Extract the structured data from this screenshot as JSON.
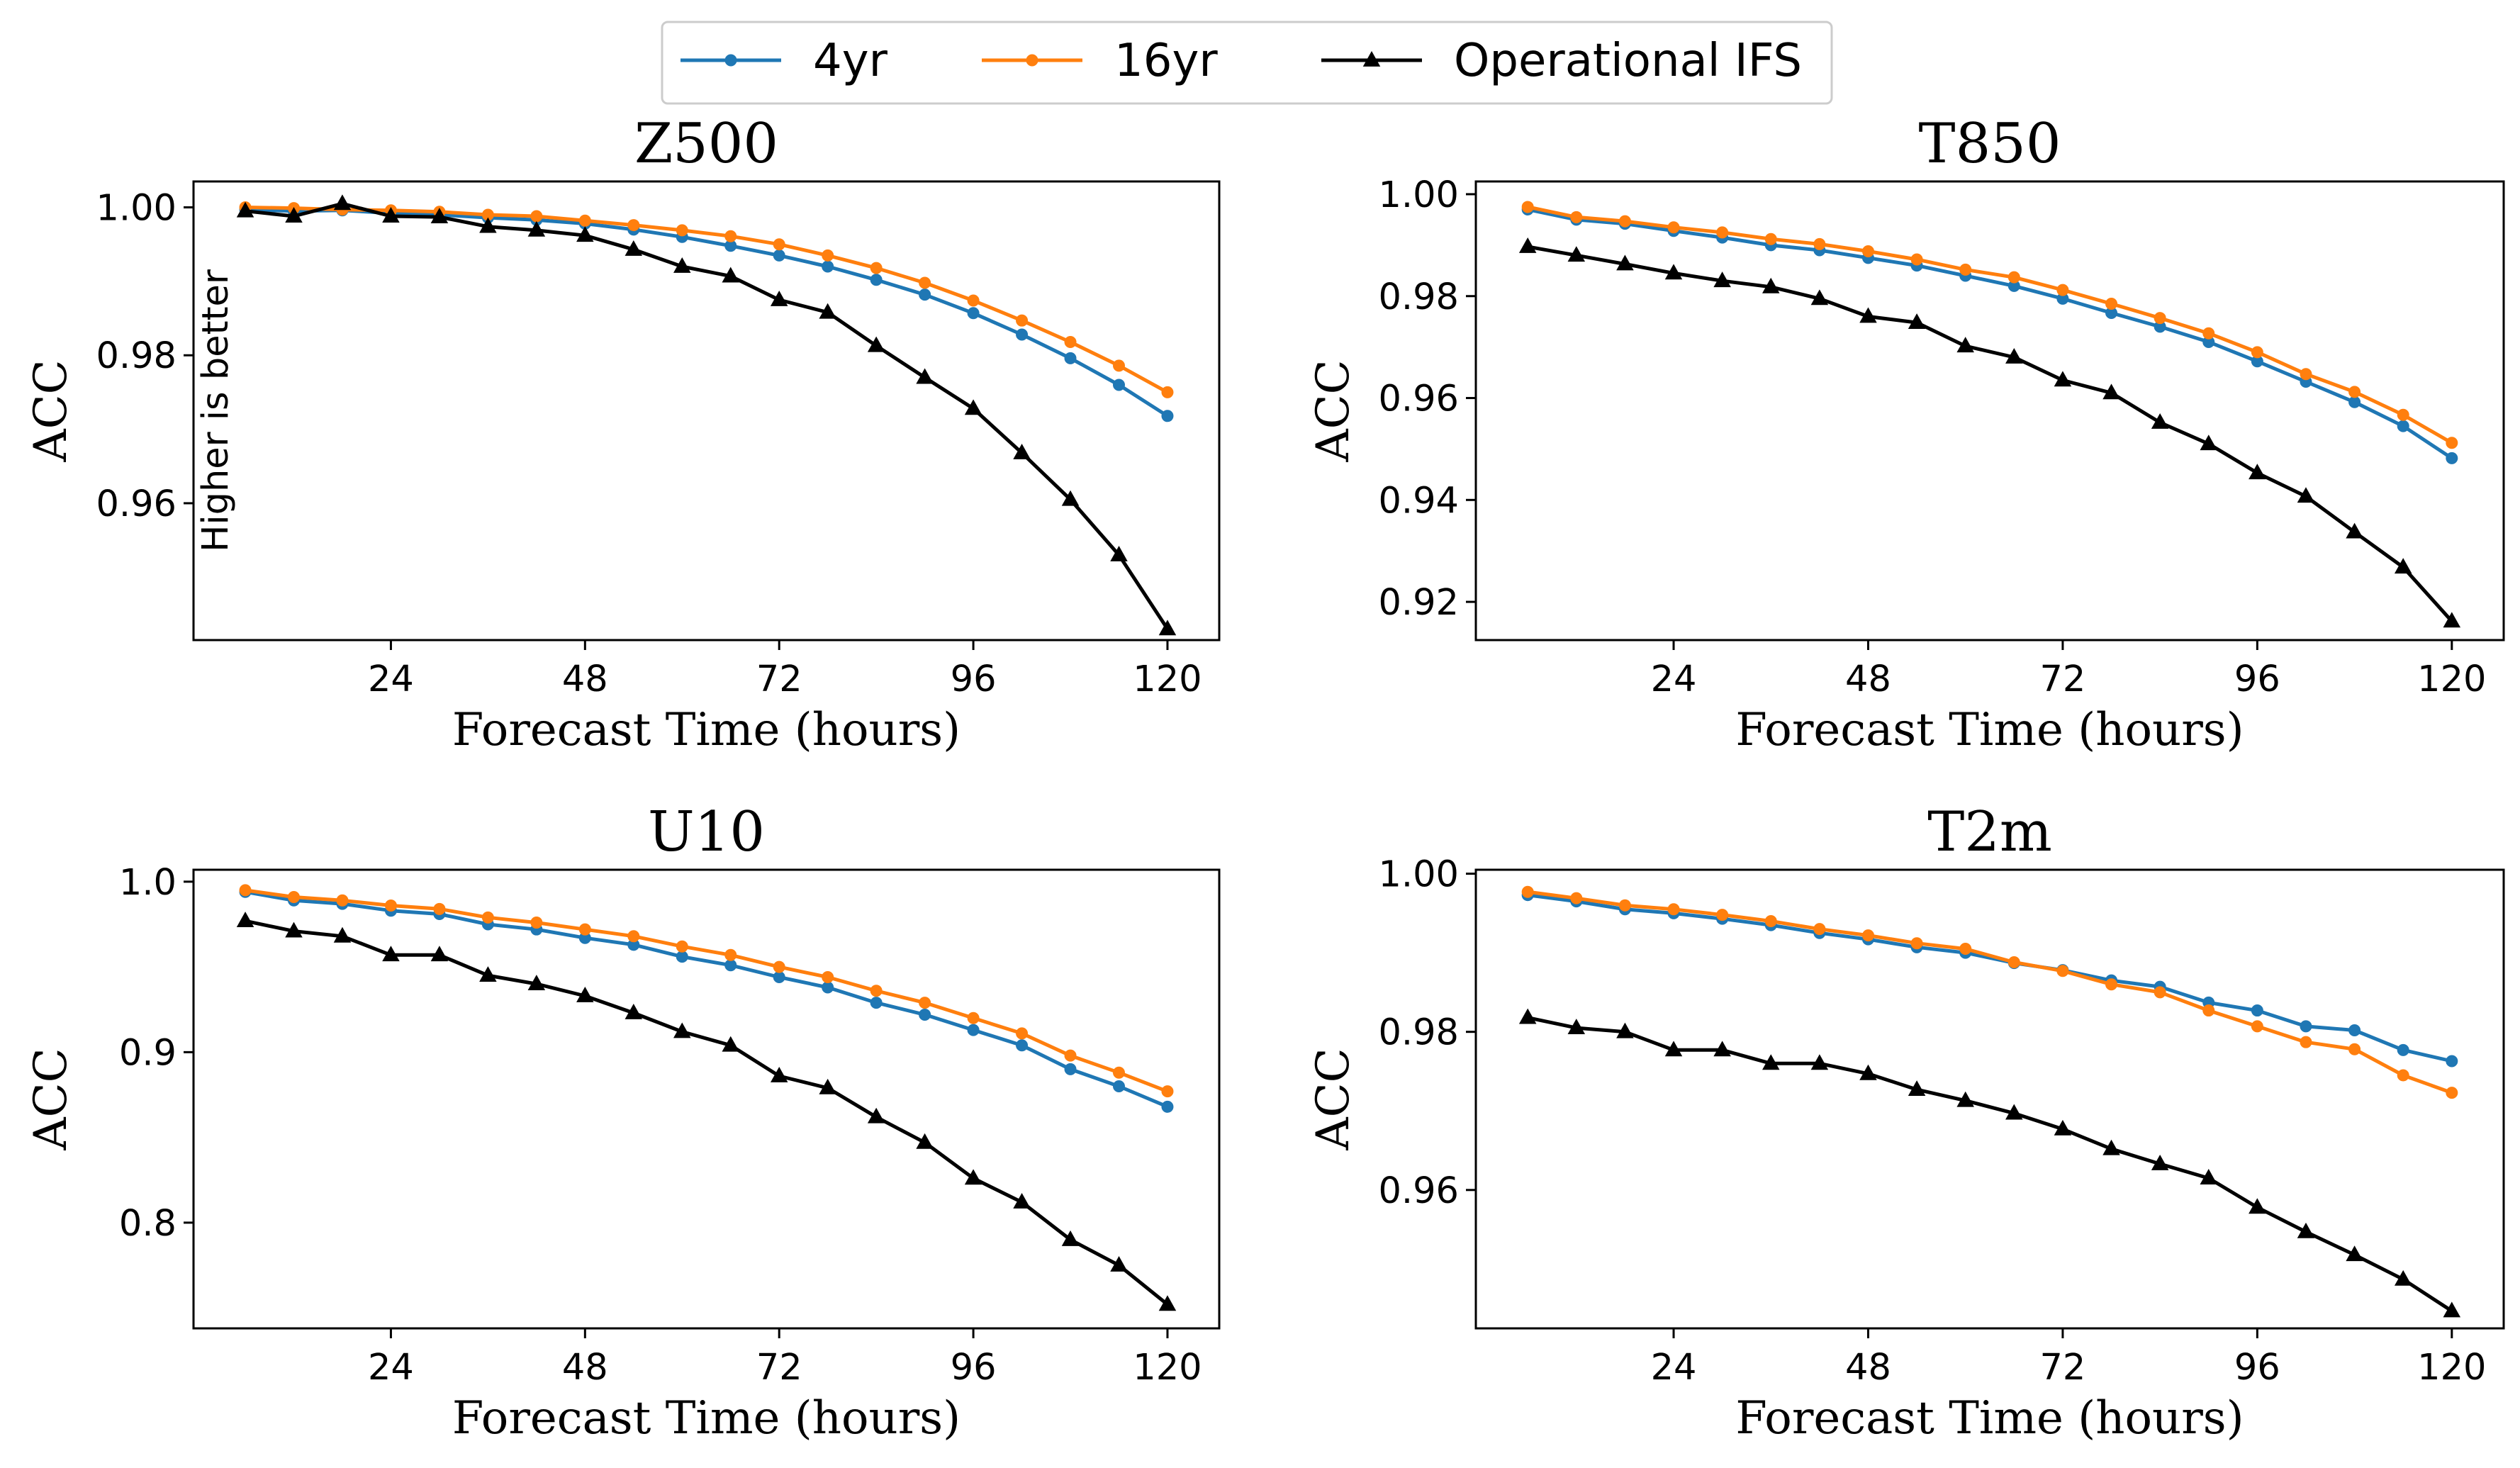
{
  "legend": {
    "placement": "top-center",
    "entries": [
      {
        "name": "4yr",
        "color": "#1f77b4",
        "marker": "circle"
      },
      {
        "name": "16yr",
        "color": "#ff7f0e",
        "marker": "circle"
      },
      {
        "name": "Operational IFS",
        "color": "#000000",
        "marker": "triangle"
      }
    ]
  },
  "chart_data": [
    {
      "type": "line",
      "title": "Z500",
      "xlabel": "Forecast Time (hours)",
      "ylabel": "ACC",
      "annotation": "Higher is better",
      "xlim": [
        -0.4,
        126.4
      ],
      "ylim": [
        0.9415,
        1.0035
      ],
      "xticks": [
        24,
        48,
        72,
        96,
        120
      ],
      "xtick_labels": [
        "24",
        "48",
        "72",
        "96",
        "120"
      ],
      "yticks": [
        0.96,
        0.98,
        1.0
      ],
      "ytick_labels": [
        "0.96",
        "0.98",
        "1.00"
      ],
      "grid": false,
      "x": [
        6,
        12,
        18,
        24,
        30,
        36,
        42,
        48,
        54,
        60,
        66,
        72,
        78,
        84,
        90,
        96,
        102,
        108,
        114,
        120
      ],
      "series": [
        {
          "name": "4yr",
          "values": [
            0.9997,
            0.9995,
            0.9996,
            0.9992,
            0.999,
            0.9986,
            0.9983,
            0.9978,
            0.997,
            0.996,
            0.9948,
            0.9935,
            0.992,
            0.9902,
            0.9882,
            0.9857,
            0.9828,
            0.9796,
            0.976,
            0.9718
          ]
        },
        {
          "name": "16yr",
          "values": [
            1.0,
            0.9999,
            0.9997,
            0.9996,
            0.9994,
            0.999,
            0.9988,
            0.9982,
            0.9976,
            0.9969,
            0.9961,
            0.995,
            0.9935,
            0.9918,
            0.9898,
            0.9874,
            0.9847,
            0.9818,
            0.9786,
            0.975
          ]
        },
        {
          "name": "Operational IFS",
          "values": [
            0.9995,
            0.9988,
            1.0005,
            0.9988,
            0.9987,
            0.9974,
            0.9969,
            0.9962,
            0.9943,
            0.992,
            0.9907,
            0.9875,
            0.9858,
            0.9813,
            0.977,
            0.9728,
            0.9668,
            0.9605,
            0.953,
            0.943
          ]
        }
      ]
    },
    {
      "type": "line",
      "title": "T850",
      "xlabel": "Forecast Time (hours)",
      "ylabel": "ACC",
      "xlim": [
        -0.4,
        126.4
      ],
      "ylim": [
        0.9125,
        1.0025
      ],
      "xticks": [
        24,
        48,
        72,
        96,
        120
      ],
      "xtick_labels": [
        "24",
        "48",
        "72",
        "96",
        "120"
      ],
      "yticks": [
        0.92,
        0.94,
        0.96,
        0.98,
        1.0
      ],
      "ytick_labels": [
        "0.92",
        "0.94",
        "0.96",
        "0.98",
        "1.00"
      ],
      "grid": false,
      "x": [
        6,
        12,
        18,
        24,
        30,
        36,
        42,
        48,
        54,
        60,
        66,
        72,
        78,
        84,
        90,
        96,
        102,
        108,
        114,
        120
      ],
      "series": [
        {
          "name": "4yr",
          "values": [
            0.997,
            0.995,
            0.9942,
            0.9928,
            0.9915,
            0.99,
            0.989,
            0.9875,
            0.986,
            0.984,
            0.982,
            0.9795,
            0.9767,
            0.974,
            0.971,
            0.9672,
            0.9632,
            0.9592,
            0.9545,
            0.9482
          ]
        },
        {
          "name": "16yr",
          "values": [
            0.9975,
            0.9955,
            0.9947,
            0.9935,
            0.9925,
            0.9912,
            0.9902,
            0.9888,
            0.9872,
            0.9852,
            0.9837,
            0.9812,
            0.9785,
            0.9757,
            0.9727,
            0.969,
            0.9647,
            0.9612,
            0.9567,
            0.9512
          ]
        },
        {
          "name": "Operational IFS",
          "values": [
            0.9897,
            0.988,
            0.9863,
            0.9845,
            0.983,
            0.9818,
            0.9795,
            0.976,
            0.9748,
            0.9702,
            0.968,
            0.9635,
            0.961,
            0.9552,
            0.951,
            0.9453,
            0.9407,
            0.9337,
            0.9268,
            0.9162
          ]
        }
      ]
    },
    {
      "type": "line",
      "title": "U10",
      "xlabel": "Forecast Time (hours)",
      "ylabel": "ACC",
      "xlim": [
        -0.4,
        126.4
      ],
      "ylim": [
        0.738,
        1.007
      ],
      "xticks": [
        24,
        48,
        72,
        96,
        120
      ],
      "xtick_labels": [
        "24",
        "48",
        "72",
        "96",
        "120"
      ],
      "yticks": [
        0.8,
        0.9,
        1.0
      ],
      "ytick_labels": [
        "0.8",
        "0.9",
        "1.0"
      ],
      "grid": false,
      "x": [
        6,
        12,
        18,
        24,
        30,
        36,
        42,
        48,
        54,
        60,
        66,
        72,
        78,
        84,
        90,
        96,
        102,
        108,
        114,
        120
      ],
      "series": [
        {
          "name": "4yr",
          "values": [
            0.994,
            0.989,
            0.987,
            0.983,
            0.981,
            0.975,
            0.972,
            0.967,
            0.963,
            0.956,
            0.951,
            0.944,
            0.938,
            0.929,
            0.922,
            0.913,
            0.904,
            0.89,
            0.88,
            0.868
          ]
        },
        {
          "name": "16yr",
          "values": [
            0.995,
            0.991,
            0.989,
            0.986,
            0.984,
            0.979,
            0.976,
            0.972,
            0.968,
            0.962,
            0.957,
            0.95,
            0.944,
            0.936,
            0.929,
            0.92,
            0.911,
            0.898,
            0.888,
            0.877
          ]
        },
        {
          "name": "Operational IFS",
          "values": [
            0.977,
            0.971,
            0.968,
            0.957,
            0.957,
            0.945,
            0.94,
            0.933,
            0.923,
            0.912,
            0.904,
            0.886,
            0.879,
            0.862,
            0.847,
            0.826,
            0.812,
            0.79,
            0.775,
            0.752
          ]
        }
      ]
    },
    {
      "type": "line",
      "title": "T2m",
      "xlabel": "Forecast Time (hours)",
      "ylabel": "ACC",
      "xlim": [
        -0.4,
        126.4
      ],
      "ylim": [
        0.9425,
        1.0005
      ],
      "xticks": [
        24,
        48,
        72,
        96,
        120
      ],
      "xtick_labels": [
        "24",
        "48",
        "72",
        "96",
        "120"
      ],
      "yticks": [
        0.96,
        0.98,
        1.0
      ],
      "ytick_labels": [
        "0.96",
        "0.98",
        "1.00"
      ],
      "grid": false,
      "x": [
        6,
        12,
        18,
        24,
        30,
        36,
        42,
        48,
        54,
        60,
        66,
        72,
        78,
        84,
        90,
        96,
        102,
        108,
        114,
        120
      ],
      "series": [
        {
          "name": "4yr",
          "values": [
            0.9973,
            0.9965,
            0.9955,
            0.995,
            0.9943,
            0.9935,
            0.9925,
            0.9917,
            0.9907,
            0.99,
            0.9887,
            0.9878,
            0.9865,
            0.9857,
            0.9837,
            0.9827,
            0.9807,
            0.9802,
            0.9777,
            0.9763
          ]
        },
        {
          "name": "16yr",
          "values": [
            0.9977,
            0.9969,
            0.996,
            0.9955,
            0.9948,
            0.994,
            0.993,
            0.9922,
            0.9912,
            0.9905,
            0.9888,
            0.9877,
            0.986,
            0.985,
            0.9827,
            0.9807,
            0.9787,
            0.9778,
            0.9745,
            0.9723
          ]
        },
        {
          "name": "Operational IFS",
          "values": [
            0.9818,
            0.9805,
            0.98,
            0.9777,
            0.9777,
            0.976,
            0.976,
            0.9747,
            0.9727,
            0.9713,
            0.9697,
            0.9677,
            0.9652,
            0.9633,
            0.9615,
            0.9578,
            0.9547,
            0.9518,
            0.9487,
            0.9447
          ]
        }
      ]
    }
  ]
}
